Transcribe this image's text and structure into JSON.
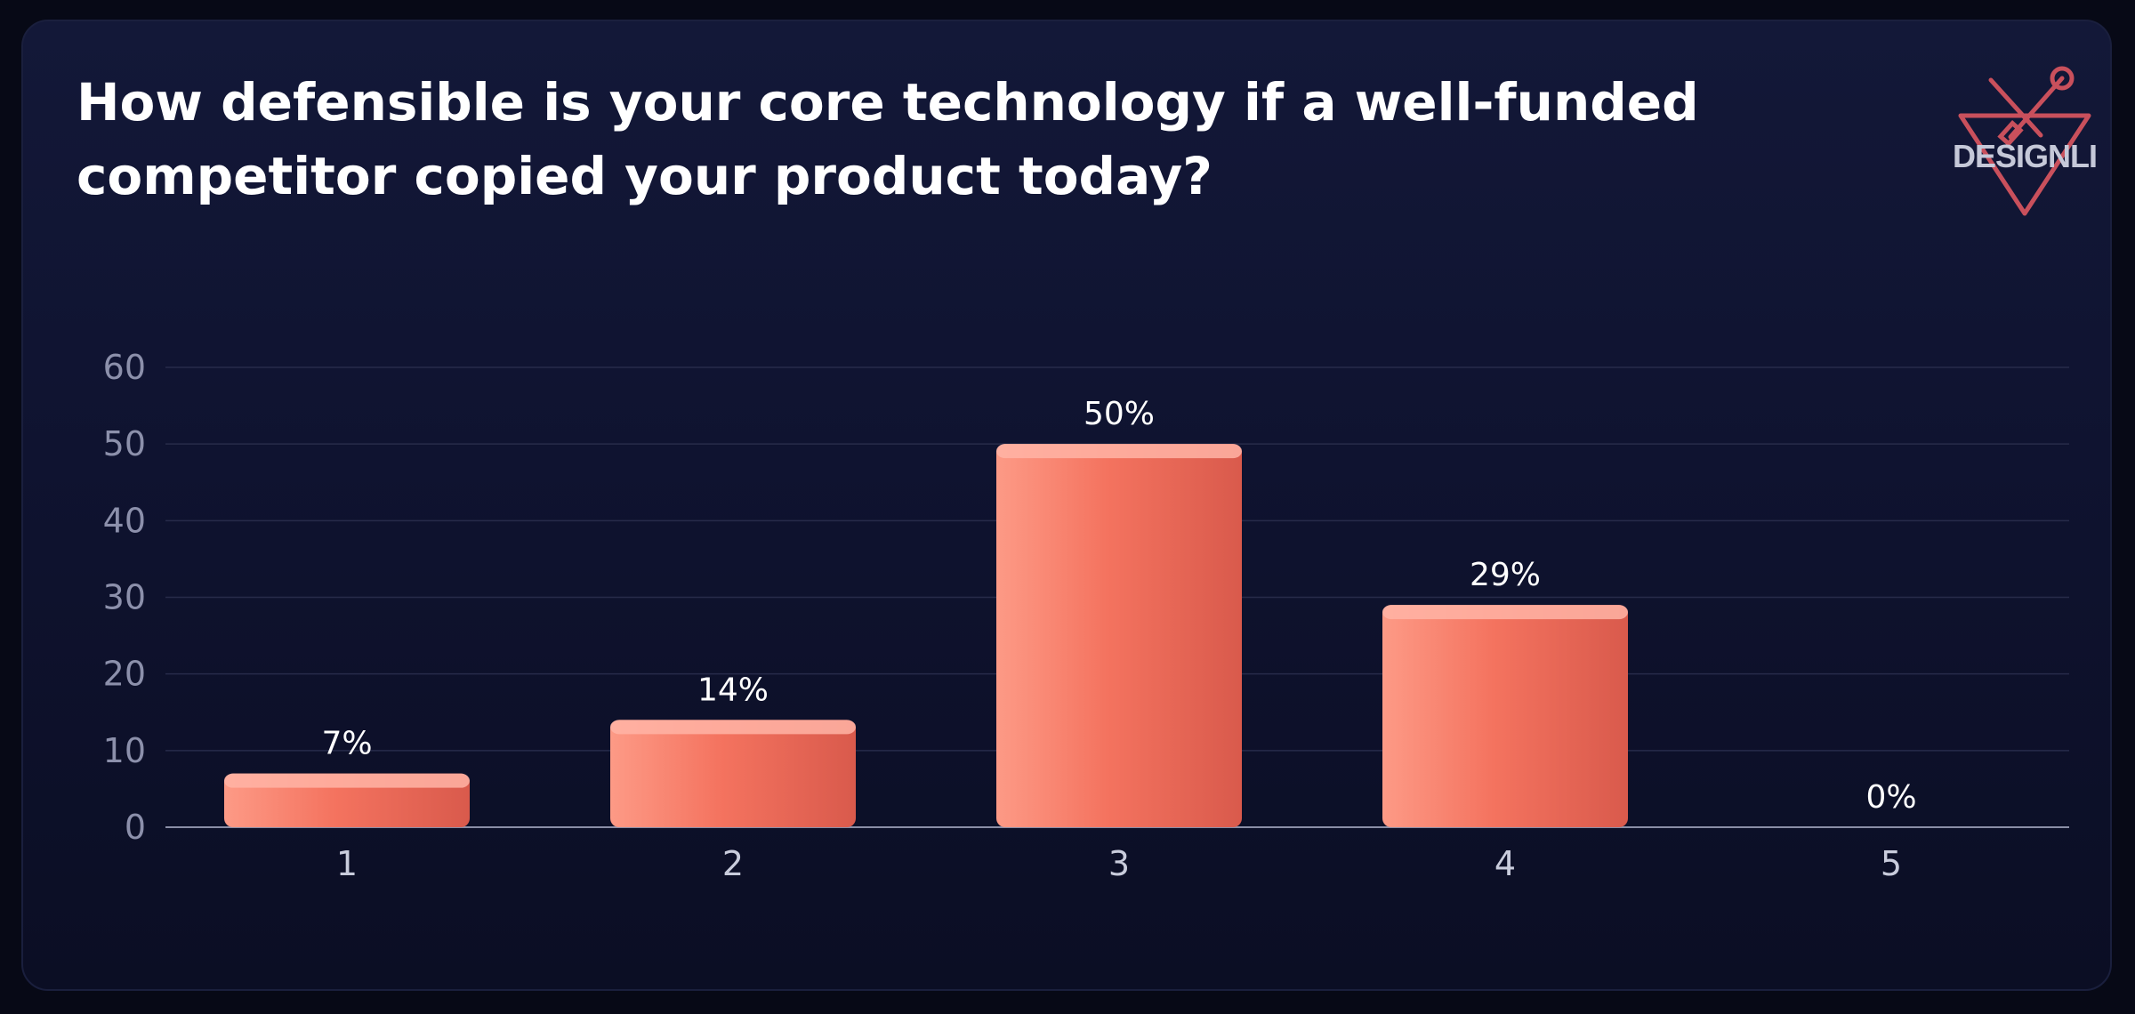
{
  "header": {
    "title": "How defensible is your core technology if a well-funded competitor copied your product today?"
  },
  "logo": {
    "text": "DESIGNLI",
    "icon": "wrench-tools-icon",
    "color": "#c9505c"
  },
  "colors": {
    "bar_light": "#fd9a86",
    "bar_mid": "#f4735f",
    "bar_dark": "#d95a4c",
    "bar_cap": "#ffb4a6",
    "gridline": "#272b4a",
    "baseline": "#8a8ea6"
  },
  "chart_data": {
    "type": "bar",
    "title": "How defensible is your core technology if a well-funded competitor copied your product today?",
    "categories": [
      "1",
      "2",
      "3",
      "4",
      "5"
    ],
    "values": [
      7,
      14,
      50,
      29,
      0
    ],
    "data_labels": [
      "7%",
      "14%",
      "50%",
      "29%",
      "0%"
    ],
    "ylim": [
      0,
      60
    ],
    "yticks": [
      0,
      10,
      20,
      30,
      40,
      50,
      60
    ],
    "xlabel": "",
    "ylabel": "",
    "grid": true,
    "legend": "none"
  }
}
